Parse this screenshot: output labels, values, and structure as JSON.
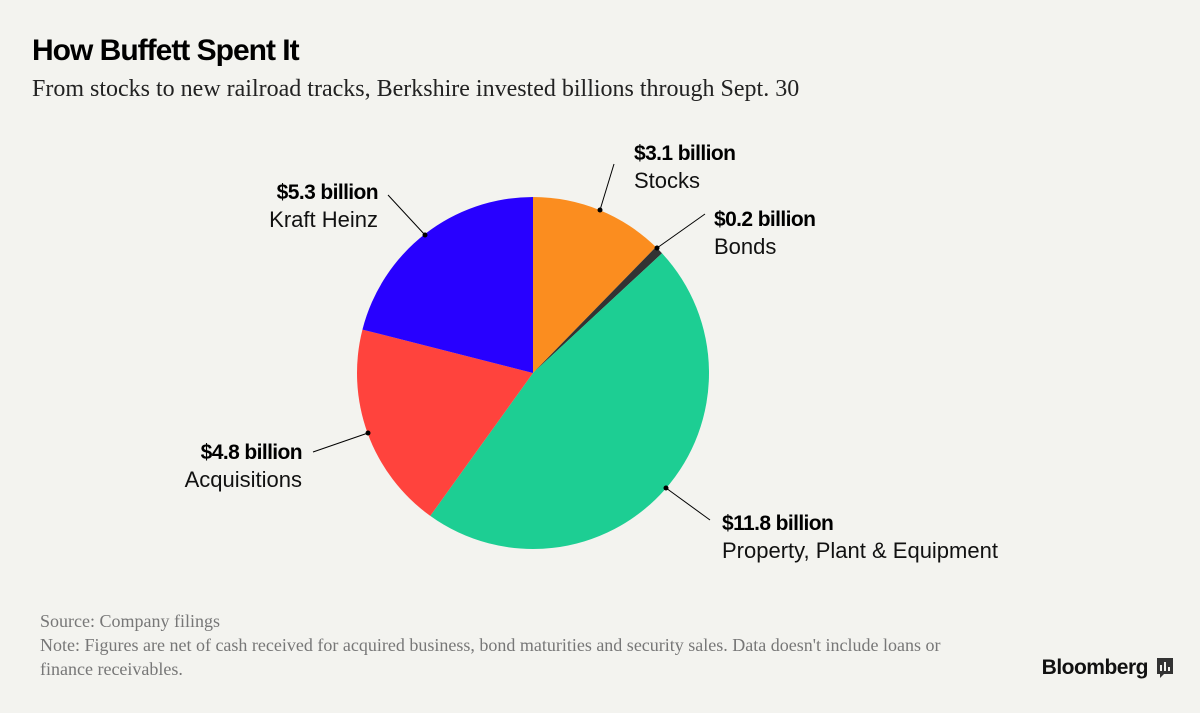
{
  "header": {
    "title": "How Buffett Spent It",
    "subtitle": "From stocks to new railroad tracks, Berkshire invested billions through Sept. 30"
  },
  "chart_data": {
    "type": "pie",
    "title": "How Buffett Spent It",
    "subtitle": "From stocks to new railroad tracks, Berkshire invested billions through Sept. 30",
    "unit": "billion USD",
    "slices": [
      {
        "label": "Stocks",
        "value": 3.1,
        "value_label": "$3.1 billion",
        "color": "#fb8d1f"
      },
      {
        "label": "Bonds",
        "value": 0.2,
        "value_label": "$0.2 billion",
        "color": "#333333"
      },
      {
        "label": "Property, Plant & Equipment",
        "value": 11.8,
        "value_label": "$11.8 billion",
        "color": "#1dce93"
      },
      {
        "label": "Acquisitions",
        "value": 4.8,
        "value_label": "$4.8 billion",
        "color": "#ff433d"
      },
      {
        "label": "Kraft Heinz",
        "value": 5.3,
        "value_label": "$5.3 billion",
        "color": "#2800ff"
      }
    ],
    "start_angle": "12 o'clock",
    "direction": "clockwise",
    "legend": "none"
  },
  "footer": {
    "source": "Source: Company filings",
    "note": "Note: Figures are net of cash received for acquired business, bond maturities and security sales. Data doesn't include loans or finance receivables."
  },
  "brand": {
    "name": "Bloomberg",
    "icon": "bar-chart-icon"
  }
}
